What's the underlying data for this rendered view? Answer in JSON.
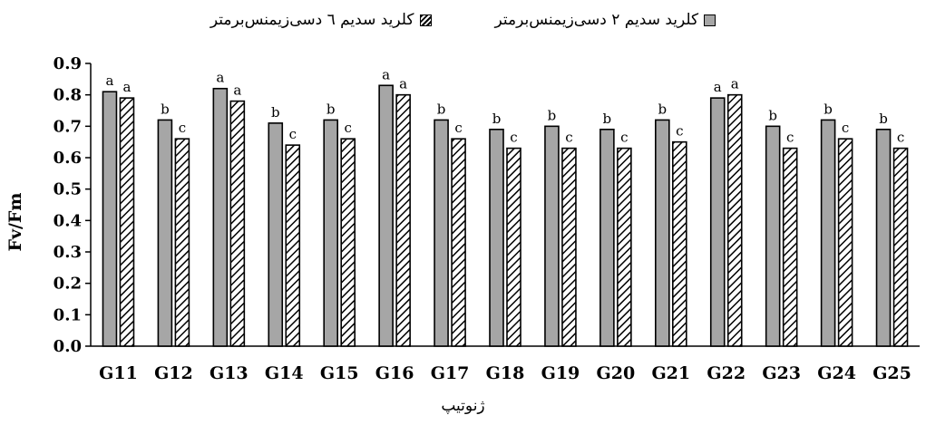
{
  "chart_data": {
    "type": "bar",
    "title": "",
    "xlabel": "ژنوتیپ",
    "ylabel": "Fv/Fm",
    "ylim": [
      0,
      0.9
    ],
    "yticks": [
      "0.0",
      "0.1",
      "0.2",
      "0.3",
      "0.4",
      "0.5",
      "0.6",
      "0.7",
      "0.8",
      "0.9"
    ],
    "categories": [
      "G11",
      "G12",
      "G13",
      "G14",
      "G15",
      "G16",
      "G17",
      "G18",
      "G19",
      "G20",
      "G21",
      "G22",
      "G23",
      "G24",
      "G25"
    ],
    "series": [
      {
        "name": "کلرید سدیم ۲ دسی‌زیمنس‌برمتر",
        "fill": "#a6a6a6",
        "values": [
          0.81,
          0.72,
          0.82,
          0.71,
          0.72,
          0.83,
          0.72,
          0.69,
          0.7,
          0.69,
          0.72,
          0.79,
          0.7,
          0.72,
          0.69
        ],
        "labels": [
          "a",
          "b",
          "a",
          "b",
          "b",
          "a",
          "b",
          "b",
          "b",
          "b",
          "b",
          "a",
          "b",
          "b",
          "b"
        ]
      },
      {
        "name": "کلرید سدیم ٦ دسی‌زیمنس‌برمتر",
        "fill": "hatch",
        "values": [
          0.79,
          0.66,
          0.78,
          0.64,
          0.66,
          0.8,
          0.66,
          0.63,
          0.63,
          0.63,
          0.65,
          0.8,
          0.63,
          0.66,
          0.63
        ],
        "labels": [
          "a",
          "c",
          "a",
          "c",
          "c",
          "a",
          "c",
          "c",
          "c",
          "c",
          "c",
          "a",
          "c",
          "c",
          "c"
        ]
      }
    ],
    "legend": "top"
  }
}
